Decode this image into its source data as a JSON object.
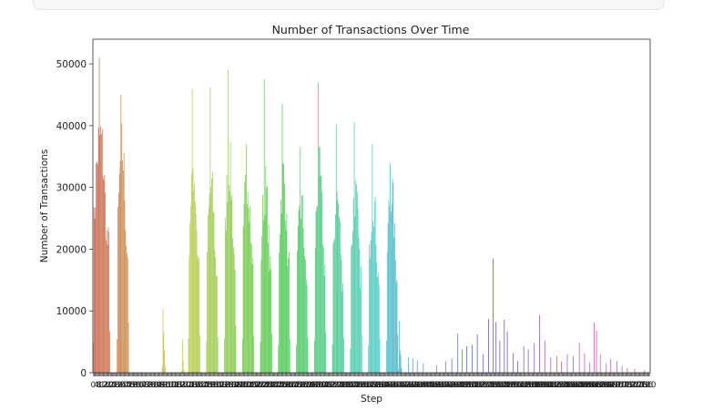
{
  "colors": {
    "panel_bg": "#f7f7f8",
    "axis": "#333333",
    "text": "#222222"
  },
  "chart_data": {
    "type": "bar",
    "title": "Number of Transactions Over Time",
    "xlabel": "Step",
    "ylabel": "Number of Transactions",
    "ylim": [
      0,
      54000
    ],
    "xlim": [
      0,
      743
    ],
    "yticks": [
      {
        "value": 0,
        "label": "0"
      },
      {
        "value": 10000,
        "label": "10000"
      },
      {
        "value": 20000,
        "label": "20000"
      },
      {
        "value": 30000,
        "label": "30000"
      },
      {
        "value": 40000,
        "label": "40000"
      },
      {
        "value": 50000,
        "label": "50000"
      }
    ],
    "xtick_count": 743,
    "grid": false,
    "palette_note": "seaborn husl palette, one color per step",
    "clusters": [
      {
        "start": 0,
        "end": 22,
        "peak": 51000,
        "level": 38000
      },
      {
        "start": 32,
        "end": 47,
        "peak": 45000,
        "level": 36000
      },
      {
        "start": 92,
        "end": 96,
        "peak": 10300,
        "level": 6000
      },
      {
        "start": 118,
        "end": 121,
        "peak": 5400,
        "level": 2500
      },
      {
        "start": 127,
        "end": 142,
        "peak": 46000,
        "level": 33000
      },
      {
        "start": 151,
        "end": 166,
        "peak": 46200,
        "level": 30000
      },
      {
        "start": 175,
        "end": 190,
        "peak": 49000,
        "level": 34000
      },
      {
        "start": 199,
        "end": 214,
        "peak": 37000,
        "level": 32000
      },
      {
        "start": 223,
        "end": 238,
        "peak": 47500,
        "level": 30000
      },
      {
        "start": 247,
        "end": 262,
        "peak": 43500,
        "level": 32000
      },
      {
        "start": 271,
        "end": 286,
        "peak": 36500,
        "level": 27000
      },
      {
        "start": 295,
        "end": 310,
        "peak": 47000,
        "level": 32000
      },
      {
        "start": 319,
        "end": 334,
        "peak": 40200,
        "level": 28000
      },
      {
        "start": 343,
        "end": 358,
        "peak": 40600,
        "level": 29000
      },
      {
        "start": 367,
        "end": 382,
        "peak": 37000,
        "level": 28000
      },
      {
        "start": 391,
        "end": 406,
        "peak": 34000,
        "level": 30000
      },
      {
        "start": 407,
        "end": 411,
        "peak": 8300,
        "level": 4000
      }
    ],
    "spikes": [
      {
        "step": 420,
        "value": 2500
      },
      {
        "step": 426,
        "value": 2300
      },
      {
        "step": 432,
        "value": 2000
      },
      {
        "step": 440,
        "value": 1500
      },
      {
        "step": 458,
        "value": 1200
      },
      {
        "step": 470,
        "value": 1800
      },
      {
        "step": 478,
        "value": 2300
      },
      {
        "step": 486,
        "value": 6300
      },
      {
        "step": 492,
        "value": 3800
      },
      {
        "step": 498,
        "value": 4300
      },
      {
        "step": 505,
        "value": 4500
      },
      {
        "step": 512,
        "value": 6200
      },
      {
        "step": 520,
        "value": 3000
      },
      {
        "step": 527,
        "value": 8700
      },
      {
        "step": 533,
        "value": 18500
      },
      {
        "step": 537,
        "value": 8200
      },
      {
        "step": 542,
        "value": 5200
      },
      {
        "step": 548,
        "value": 8600
      },
      {
        "step": 552,
        "value": 6700
      },
      {
        "step": 560,
        "value": 3200
      },
      {
        "step": 566,
        "value": 1900
      },
      {
        "step": 574,
        "value": 4300
      },
      {
        "step": 580,
        "value": 3800
      },
      {
        "step": 588,
        "value": 4800
      },
      {
        "step": 595,
        "value": 9300
      },
      {
        "step": 602,
        "value": 5200
      },
      {
        "step": 610,
        "value": 2500
      },
      {
        "step": 618,
        "value": 2700
      },
      {
        "step": 624,
        "value": 1800
      },
      {
        "step": 632,
        "value": 3000
      },
      {
        "step": 640,
        "value": 2700
      },
      {
        "step": 648,
        "value": 4900
      },
      {
        "step": 655,
        "value": 3200
      },
      {
        "step": 662,
        "value": 1700
      },
      {
        "step": 668,
        "value": 8100
      },
      {
        "step": 671,
        "value": 6800
      },
      {
        "step": 676,
        "value": 3000
      },
      {
        "step": 684,
        "value": 1500
      },
      {
        "step": 690,
        "value": 2200
      },
      {
        "step": 698,
        "value": 1900
      },
      {
        "step": 705,
        "value": 1100
      },
      {
        "step": 712,
        "value": 800
      },
      {
        "step": 722,
        "value": 600
      },
      {
        "step": 735,
        "value": 400
      }
    ]
  }
}
